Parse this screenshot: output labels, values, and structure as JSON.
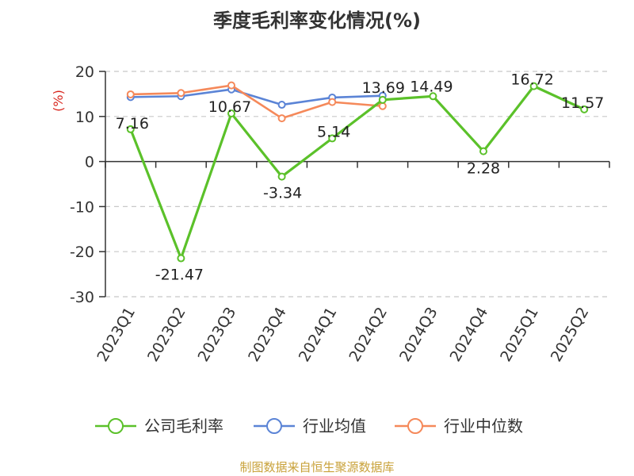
{
  "title": "季度毛利率变化情况(%)",
  "source": "制图数据来自恒生聚源数据库",
  "colors": {
    "green": "#5bc12a",
    "blue": "#5b84d6",
    "orange": "#f5895a",
    "ylabel": "#d9271f",
    "source": "#c9a23a",
    "axis": "#333333",
    "grid": "#c8c8c8"
  },
  "chart_data": {
    "type": "line",
    "title": "季度毛利率变化情况(%)",
    "ylabel": "(%)",
    "xlabel": "",
    "ylim": [
      -30,
      20
    ],
    "yticks": [
      20,
      10,
      0,
      -10,
      -20,
      -30
    ],
    "grid": "horizontal-dashed",
    "legend_position": "bottom",
    "categories": [
      "2023Q1",
      "2023Q2",
      "2023Q3",
      "2023Q4",
      "2024Q1",
      "2024Q2",
      "2024Q3",
      "2024Q4",
      "2025Q1",
      "2025Q2"
    ],
    "series": [
      {
        "name": "公司毛利率",
        "color": "#5bc12a",
        "values": [
          7.16,
          -21.47,
          10.67,
          -3.34,
          5.14,
          13.69,
          14.49,
          2.28,
          16.72,
          11.57
        ],
        "labels": [
          "7.16",
          "-21.47",
          "10.67",
          "-3.34",
          "5.14",
          "13.69",
          "14.49",
          "2.28",
          "16.72",
          "11.57"
        ]
      },
      {
        "name": "行业均值",
        "color": "#5b84d6",
        "values": [
          14.3,
          14.5,
          16.0,
          12.6,
          14.2,
          14.6,
          null,
          null,
          null,
          null
        ]
      },
      {
        "name": "行业中位数",
        "color": "#f5895a",
        "values": [
          14.9,
          15.2,
          16.9,
          9.6,
          13.2,
          12.3,
          null,
          null,
          null,
          null
        ]
      }
    ]
  }
}
